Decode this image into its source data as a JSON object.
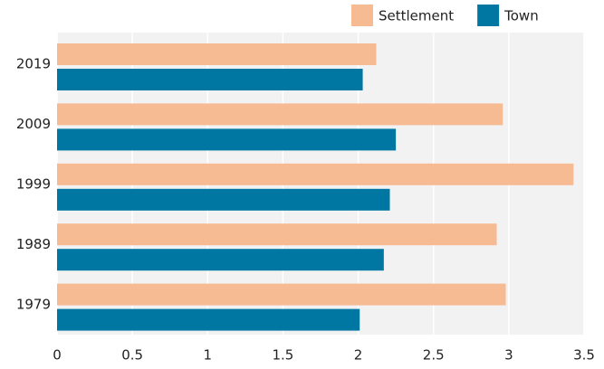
{
  "chart_data": {
    "type": "hbar",
    "categories": [
      "2019",
      "2009",
      "1999",
      "1989",
      "1979"
    ],
    "series": [
      {
        "name": "Settlement",
        "color": "#f7bb94",
        "values": [
          2.12,
          2.96,
          3.43,
          2.92,
          2.98
        ]
      },
      {
        "name": "Town",
        "color": "#0077a3",
        "values": [
          2.03,
          2.25,
          2.21,
          2.17,
          2.01
        ]
      }
    ],
    "xlim": [
      0,
      3.5
    ],
    "xticks": [
      0,
      0.5,
      1,
      1.5,
      2,
      2.5,
      3,
      3.5
    ],
    "grid": true,
    "legend": "top-right"
  }
}
